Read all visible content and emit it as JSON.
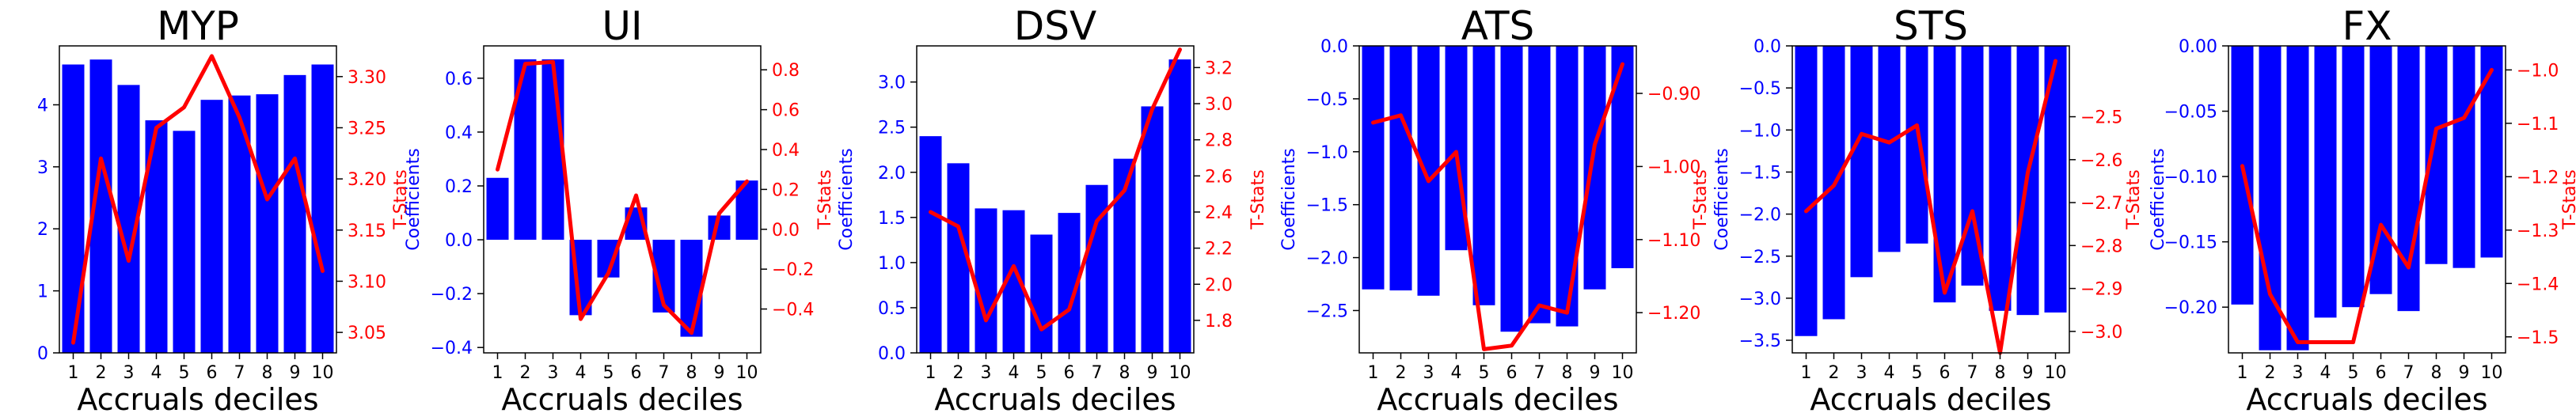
{
  "colors": {
    "bar": "#0000ff",
    "line": "#ff0000",
    "left_axis_text": "#0000ff",
    "right_axis_text": "#ff0000",
    "frame": "#000000"
  },
  "chart_data": [
    {
      "type": "bar",
      "title": "MYP",
      "xlabel": "Accruals deciles",
      "ylabel": "Coefficients",
      "y2label": "T-Stats",
      "categories": [
        "1",
        "2",
        "3",
        "4",
        "5",
        "6",
        "7",
        "8",
        "9",
        "10"
      ],
      "ylim": [
        0,
        4.95
      ],
      "yticks": [
        0,
        1,
        2,
        3,
        4
      ],
      "y2lim": [
        3.03,
        3.33
      ],
      "y2ticks": [
        3.05,
        3.1,
        3.15,
        3.2,
        3.25,
        3.3
      ],
      "series": [
        {
          "name": "Coefficients",
          "kind": "bar",
          "axis": "left",
          "values": [
            4.65,
            4.73,
            4.32,
            3.75,
            3.58,
            4.08,
            4.15,
            4.17,
            4.48,
            4.65
          ]
        },
        {
          "name": "T-Stats",
          "kind": "line",
          "axis": "right",
          "values": [
            3.04,
            3.22,
            3.12,
            3.25,
            3.27,
            3.32,
            3.26,
            3.18,
            3.22,
            3.11
          ]
        }
      ]
    },
    {
      "type": "bar",
      "title": "UI",
      "xlabel": "Accruals deciles",
      "ylabel": "Coefficients",
      "y2label": "T-Stats",
      "categories": [
        "1",
        "2",
        "3",
        "4",
        "5",
        "6",
        "7",
        "8",
        "9",
        "10"
      ],
      "ylim": [
        -0.42,
        0.72
      ],
      "yticks": [
        -0.4,
        -0.2,
        0.0,
        0.2,
        0.4,
        0.6
      ],
      "y2lim": [
        -0.62,
        0.92
      ],
      "y2ticks": [
        -0.4,
        -0.2,
        0.0,
        0.2,
        0.4,
        0.6,
        0.8
      ],
      "series": [
        {
          "name": "Coefficients",
          "kind": "bar",
          "axis": "left",
          "values": [
            0.23,
            0.67,
            0.67,
            -0.28,
            -0.14,
            0.12,
            -0.27,
            -0.36,
            0.09,
            0.22
          ]
        },
        {
          "name": "T-Stats",
          "kind": "line",
          "axis": "right",
          "values": [
            0.3,
            0.83,
            0.84,
            -0.45,
            -0.22,
            0.17,
            -0.38,
            -0.52,
            0.08,
            0.24
          ]
        }
      ]
    },
    {
      "type": "bar",
      "title": "DSV",
      "xlabel": "Accruals deciles",
      "ylabel": "Coefficients",
      "y2label": "T-Stats",
      "categories": [
        "1",
        "2",
        "3",
        "4",
        "5",
        "6",
        "7",
        "8",
        "9",
        "10"
      ],
      "ylim": [
        0,
        3.4
      ],
      "yticks": [
        0.0,
        0.5,
        1.0,
        1.5,
        2.0,
        2.5,
        3.0
      ],
      "y2lim": [
        1.62,
        3.32
      ],
      "y2ticks": [
        1.8,
        2.0,
        2.2,
        2.4,
        2.6,
        2.8,
        3.0,
        3.2
      ],
      "series": [
        {
          "name": "Coefficients",
          "kind": "bar",
          "axis": "left",
          "values": [
            2.4,
            2.1,
            1.6,
            1.58,
            1.31,
            1.55,
            1.86,
            2.15,
            2.73,
            3.25
          ]
        },
        {
          "name": "T-Stats",
          "kind": "line",
          "axis": "right",
          "values": [
            2.4,
            2.32,
            1.8,
            2.1,
            1.75,
            1.86,
            2.35,
            2.52,
            2.97,
            3.3
          ]
        }
      ]
    },
    {
      "type": "bar",
      "title": "ATS",
      "xlabel": "Accruals deciles",
      "ylabel": "Coefficients",
      "y2label": "T-Stats",
      "categories": [
        "1",
        "2",
        "3",
        "4",
        "5",
        "6",
        "7",
        "8",
        "9",
        "10"
      ],
      "ylim": [
        -2.9,
        0.0
      ],
      "yticks": [
        -2.5,
        -2.0,
        -1.5,
        -1.0,
        -0.5,
        0.0
      ],
      "y2lim": [
        -1.255,
        -0.835
      ],
      "y2ticks": [
        -1.2,
        -1.1,
        -1.0,
        -0.9
      ],
      "series": [
        {
          "name": "Coefficients",
          "kind": "bar",
          "axis": "left",
          "values": [
            -2.3,
            -2.31,
            -2.36,
            -1.93,
            -2.45,
            -2.7,
            -2.62,
            -2.65,
            -2.3,
            -2.1
          ]
        },
        {
          "name": "T-Stats",
          "kind": "line",
          "axis": "right",
          "values": [
            -0.94,
            -0.93,
            -1.02,
            -0.98,
            -1.25,
            -1.245,
            -1.19,
            -1.2,
            -0.97,
            -0.86
          ]
        }
      ]
    },
    {
      "type": "bar",
      "title": "STS",
      "xlabel": "Accruals deciles",
      "ylabel": "Coefficients",
      "y2label": "T-Stats",
      "categories": [
        "1",
        "2",
        "3",
        "4",
        "5",
        "6",
        "7",
        "8",
        "9",
        "10"
      ],
      "ylim": [
        -3.65,
        0.0
      ],
      "yticks": [
        -3.5,
        -3.0,
        -2.5,
        -2.0,
        -1.5,
        -1.0,
        -0.5,
        0.0
      ],
      "y2lim": [
        -3.05,
        -2.335
      ],
      "y2ticks": [
        -3.0,
        -2.9,
        -2.8,
        -2.7,
        -2.6,
        -2.5
      ],
      "series": [
        {
          "name": "Coefficients",
          "kind": "bar",
          "axis": "left",
          "values": [
            -3.45,
            -3.25,
            -2.75,
            -2.45,
            -2.35,
            -3.05,
            -2.85,
            -3.15,
            -3.2,
            -3.17
          ]
        },
        {
          "name": "T-Stats",
          "kind": "line",
          "axis": "right",
          "values": [
            -2.72,
            -2.66,
            -2.54,
            -2.56,
            -2.52,
            -2.91,
            -2.72,
            -3.05,
            -2.63,
            -2.37
          ]
        }
      ]
    },
    {
      "type": "bar",
      "title": "FX",
      "xlabel": "Accruals deciles",
      "ylabel": "Coefficients",
      "y2label": "T-Stats",
      "categories": [
        "1",
        "2",
        "3",
        "4",
        "5",
        "6",
        "7",
        "8",
        "9",
        "10"
      ],
      "ylim": [
        -0.235,
        0.0
      ],
      "yticks": [
        -0.2,
        -0.15,
        -0.1,
        -0.05,
        0.0
      ],
      "y2lim": [
        -1.53,
        -0.955
      ],
      "y2ticks": [
        -1.5,
        -1.4,
        -1.3,
        -1.2,
        -1.1,
        -1.0
      ],
      "series": [
        {
          "name": "Coefficients",
          "kind": "bar",
          "axis": "left",
          "values": [
            -0.198,
            -0.233,
            -0.233,
            -0.208,
            -0.2,
            -0.19,
            -0.203,
            -0.167,
            -0.17,
            -0.162
          ]
        },
        {
          "name": "T-Stats",
          "kind": "line",
          "axis": "right",
          "values": [
            -1.18,
            -1.42,
            -1.51,
            -1.51,
            -1.51,
            -1.29,
            -1.37,
            -1.11,
            -1.09,
            -1.0
          ]
        }
      ]
    }
  ]
}
